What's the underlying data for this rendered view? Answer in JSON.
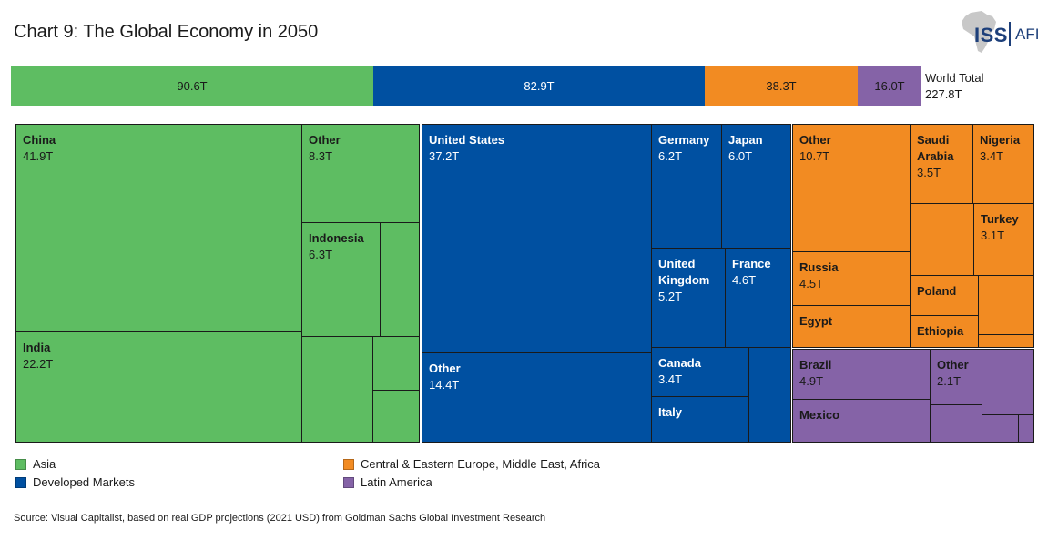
{
  "title": "Chart 9: The Global Economy in 2050",
  "logo": {
    "primary": "ISS",
    "secondary": "AFI"
  },
  "colors": {
    "asia": "#5ebd62",
    "developed": "#0050a1",
    "ceemea": "#f28b22",
    "latam": "#8563a7",
    "border": "#1a1a1a"
  },
  "chart_data": [
    {
      "type": "bar",
      "orientation": "horizontal-stacked",
      "categories": [
        "Asia",
        "Developed Markets",
        "Central & Eastern Europe, Middle East, Africa",
        "Latin America"
      ],
      "values": [
        90.6,
        82.9,
        38.3,
        16.0
      ],
      "labels": [
        "90.6T",
        "82.9T",
        "38.3T",
        "16.0T"
      ],
      "total_label": "World Total",
      "total_value": "227.8T"
    },
    {
      "type": "treemap",
      "unit": "T",
      "groups": [
        {
          "region": "Asia",
          "total": 90.6,
          "items": [
            {
              "name": "China",
              "value": 41.9,
              "label": "41.9T"
            },
            {
              "name": "India",
              "value": 22.2,
              "label": "22.2T"
            },
            {
              "name": "Other",
              "value": 8.3,
              "label": "8.3T"
            },
            {
              "name": "Indonesia",
              "value": 6.3,
              "label": "6.3T"
            }
          ]
        },
        {
          "region": "Developed Markets",
          "total": 82.9,
          "items": [
            {
              "name": "United States",
              "value": 37.2,
              "label": "37.2T"
            },
            {
              "name": "Other",
              "value": 14.4,
              "label": "14.4T"
            },
            {
              "name": "Germany",
              "value": 6.2,
              "label": "6.2T"
            },
            {
              "name": "Japan",
              "value": 6.0,
              "label": "6.0T"
            },
            {
              "name": "United Kingdom",
              "value": 5.2,
              "label": "5.2T"
            },
            {
              "name": "France",
              "value": 4.6,
              "label": "4.6T"
            },
            {
              "name": "Canada",
              "value": 3.4,
              "label": "3.4T"
            },
            {
              "name": "Italy",
              "value": null,
              "label": ""
            }
          ]
        },
        {
          "region": "Central & Eastern Europe, Middle East, Africa",
          "total": 38.3,
          "items": [
            {
              "name": "Other",
              "value": 10.7,
              "label": "10.7T"
            },
            {
              "name": "Saudi Arabia",
              "value": 3.5,
              "label": "3.5T"
            },
            {
              "name": "Nigeria",
              "value": 3.4,
              "label": "3.4T"
            },
            {
              "name": "Turkey",
              "value": 3.1,
              "label": "3.1T"
            },
            {
              "name": "Russia",
              "value": 4.5,
              "label": "4.5T"
            },
            {
              "name": "Poland",
              "value": null,
              "label": ""
            },
            {
              "name": "Egypt",
              "value": null,
              "label": ""
            },
            {
              "name": "Ethiopia",
              "value": null,
              "label": ""
            }
          ]
        },
        {
          "region": "Latin America",
          "total": 16.0,
          "items": [
            {
              "name": "Brazil",
              "value": 4.9,
              "label": "4.9T"
            },
            {
              "name": "Other",
              "value": 2.1,
              "label": "2.1T"
            },
            {
              "name": "Mexico",
              "value": null,
              "label": ""
            }
          ]
        }
      ]
    }
  ],
  "legend": [
    {
      "label": "Asia",
      "color": "#5ebd62"
    },
    {
      "label": "Developed Markets",
      "color": "#0050a1"
    },
    {
      "label": "Central & Eastern Europe, Middle East, Africa",
      "color": "#f28b22"
    },
    {
      "label": "Latin America",
      "color": "#8563a7"
    }
  ],
  "source": "Source: Visual Capitalist, based on real GDP projections (2021 USD) from Goldman Sachs Global Investment Research"
}
